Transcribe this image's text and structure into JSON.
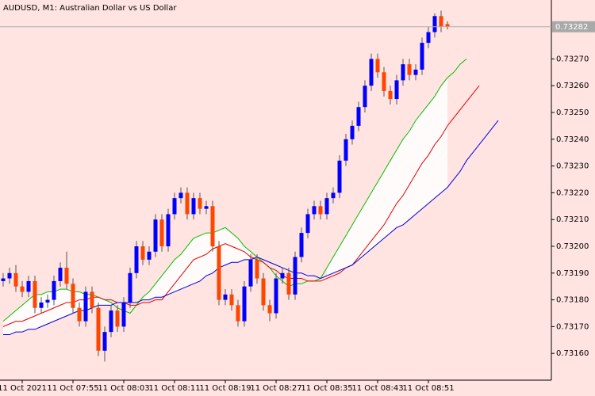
{
  "chart_data": {
    "type": "candlestick",
    "title": "AUDUSD, M1:  Australian Dollar vs US Dollar",
    "categories": [
      null,
      null,
      null,
      "11 Oct 2021",
      null,
      null,
      null,
      null,
      null,
      null,
      null,
      "11 Oct 07:55",
      null,
      null,
      null,
      null,
      null,
      null,
      null,
      "11 Oct 08:03",
      null,
      null,
      null,
      null,
      null,
      null,
      null,
      "11 Oct 08:11",
      null,
      null,
      null,
      null,
      null,
      null,
      null,
      "11 Oct 08:19",
      null,
      null,
      null,
      null,
      null,
      null,
      null,
      "11 Oct 08:27",
      null,
      null,
      null,
      null,
      null,
      null,
      null,
      "11 Oct 08:35",
      null,
      null,
      null,
      null,
      null,
      null,
      null,
      "11 Oct 08:43",
      null,
      null,
      null,
      null,
      null,
      null,
      null,
      "11 Oct 08:51",
      null,
      null,
      null,
      null,
      null,
      null,
      null,
      null,
      null,
      null,
      null
    ],
    "open": [
      0.73187,
      0.73188,
      0.7319,
      0.73185,
      0.73183,
      0.73187,
      0.73177,
      0.73179,
      0.7318,
      0.73187,
      0.73192,
      0.73186,
      0.73177,
      0.73172,
      0.73183,
      0.73177,
      0.73161,
      0.73168,
      0.73176,
      0.7317,
      0.73179,
      0.7319,
      0.732,
      0.73195,
      0.73198,
      0.7321,
      0.732,
      0.73212,
      0.73218,
      0.7322,
      0.73212,
      0.73218,
      0.73214,
      0.73215,
      0.732,
      0.7318,
      0.73182,
      0.73178,
      0.73172,
      0.73185,
      0.73195,
      0.73188,
      0.73178,
      0.73175,
      0.73188,
      0.7319,
      0.73182,
      0.73196,
      0.73205,
      0.73212,
      0.73215,
      0.73212,
      0.73218,
      0.7322,
      0.73232,
      0.7324,
      0.73245,
      0.73252,
      0.7326,
      0.7327,
      0.73265,
      0.73258,
      0.73255,
      0.73262,
      0.73268,
      0.73264,
      0.73266,
      0.73276,
      0.7328,
      0.73286,
      0.73283,
      null,
      null,
      null,
      null,
      null,
      null,
      null,
      null
    ],
    "high": [
      0.7319,
      0.73192,
      0.73193,
      0.73187,
      0.73189,
      0.73189,
      0.73181,
      0.73182,
      0.73189,
      0.73194,
      0.73198,
      0.73188,
      0.73179,
      0.73185,
      0.73185,
      0.73179,
      0.7317,
      0.73178,
      0.73178,
      0.73181,
      0.73192,
      0.73202,
      0.73202,
      0.732,
      0.73212,
      0.73212,
      0.73214,
      0.7322,
      0.73222,
      0.73222,
      0.7322,
      0.7322,
      0.73217,
      0.73217,
      0.73202,
      0.73184,
      0.73184,
      0.7318,
      0.73187,
      0.73197,
      0.73197,
      0.7319,
      0.7318,
      0.7319,
      0.73192,
      0.73192,
      0.73198,
      0.73207,
      0.73214,
      0.73217,
      0.73217,
      0.7322,
      0.73222,
      0.73234,
      0.73242,
      0.73247,
      0.73254,
      0.73262,
      0.73272,
      0.73272,
      0.73267,
      0.7326,
      0.73264,
      0.7327,
      0.7327,
      0.73268,
      0.73278,
      0.73282,
      0.73287,
      0.73288,
      0.73284,
      null,
      null,
      null,
      null,
      null,
      null,
      null,
      null
    ],
    "low": [
      0.73185,
      0.73186,
      0.73183,
      0.73181,
      0.73181,
      0.73175,
      0.73175,
      0.73177,
      0.73178,
      0.73185,
      0.73184,
      0.73175,
      0.7317,
      0.7317,
      0.73175,
      0.73159,
      0.73157,
      0.73166,
      0.73168,
      0.73168,
      0.73177,
      0.73188,
      0.73193,
      0.73193,
      0.73196,
      0.73198,
      0.73198,
      0.7321,
      0.73216,
      0.7321,
      0.7321,
      0.73212,
      0.73212,
      0.73198,
      0.73178,
      0.73178,
      0.73176,
      0.7317,
      0.7317,
      0.73183,
      0.73186,
      0.73176,
      0.73172,
      0.73173,
      0.73186,
      0.7318,
      0.7318,
      0.73194,
      0.73203,
      0.7321,
      0.7321,
      0.7321,
      0.73216,
      0.73218,
      0.7323,
      0.73238,
      0.73243,
      0.7325,
      0.73258,
      0.73263,
      0.73256,
      0.73253,
      0.73253,
      0.7326,
      0.73262,
      0.73262,
      0.73264,
      0.73274,
      0.73278,
      0.7328,
      0.73281,
      null,
      null,
      null,
      null,
      null,
      null,
      null,
      null
    ],
    "close": [
      0.73188,
      0.7319,
      0.73185,
      0.73183,
      0.73187,
      0.73177,
      0.73179,
      0.7318,
      0.73187,
      0.73192,
      0.73186,
      0.73177,
      0.73172,
      0.73183,
      0.73177,
      0.73161,
      0.73168,
      0.73176,
      0.7317,
      0.73179,
      0.7319,
      0.732,
      0.73195,
      0.73198,
      0.7321,
      0.732,
      0.73212,
      0.73218,
      0.7322,
      0.73212,
      0.73218,
      0.73214,
      0.73215,
      0.732,
      0.7318,
      0.73182,
      0.73178,
      0.73172,
      0.73185,
      0.73195,
      0.73188,
      0.73178,
      0.73175,
      0.73188,
      0.7319,
      0.73182,
      0.73196,
      0.73205,
      0.73212,
      0.73215,
      0.73212,
      0.73218,
      0.7322,
      0.73232,
      0.7324,
      0.73245,
      0.73252,
      0.7326,
      0.7327,
      0.73265,
      0.73258,
      0.73255,
      0.73262,
      0.73268,
      0.73264,
      0.73266,
      0.73276,
      0.7328,
      0.73286,
      0.73282,
      0.73282,
      null,
      null,
      null,
      null,
      null,
      null,
      null,
      null
    ],
    "up_color": "#0000ff",
    "down_color": "#ff4500",
    "series": [
      {
        "color": "#00c000",
        "values": [
          0.73172,
          0.73174,
          0.73176,
          0.73178,
          0.7318,
          0.73182,
          0.73182,
          0.73183,
          0.73183,
          0.73184,
          0.73184,
          0.73183,
          0.73183,
          0.73182,
          0.73182,
          0.73181,
          0.7318,
          0.73179,
          0.73177,
          0.73176,
          0.73175,
          0.73178,
          0.73181,
          0.73183,
          0.73186,
          0.73189,
          0.73192,
          0.73195,
          0.73197,
          0.732,
          0.73203,
          0.73204,
          0.73205,
          0.73205,
          0.73206,
          0.73207,
          0.73205,
          0.73203,
          0.732,
          0.73198,
          0.73196,
          0.73194,
          0.73192,
          0.73189,
          0.73187,
          0.73185,
          0.73186,
          0.73186,
          0.73187,
          0.73187,
          0.73188,
          0.73192,
          0.73196,
          0.732,
          0.73204,
          0.73208,
          0.73212,
          0.73216,
          0.7322,
          0.73224,
          0.73228,
          0.73232,
          0.73236,
          0.7324,
          0.73243,
          0.73247,
          0.7325,
          0.73253,
          0.73256,
          0.7326,
          0.73263,
          0.73265,
          0.73268,
          0.7327,
          null,
          null,
          null,
          null,
          null
        ]
      },
      {
        "color": "#e00000",
        "values": [
          0.7317,
          0.73171,
          0.73172,
          0.73172,
          0.73173,
          0.73174,
          0.73175,
          0.73176,
          0.73177,
          0.73178,
          0.73179,
          0.73179,
          0.7318,
          0.7318,
          0.73181,
          0.73181,
          0.7318,
          0.7318,
          0.73179,
          0.73179,
          0.73178,
          0.73178,
          0.73179,
          0.73179,
          0.7318,
          0.7318,
          0.73183,
          0.73186,
          0.73189,
          0.73192,
          0.73195,
          0.73196,
          0.73197,
          0.73199,
          0.732,
          0.73201,
          0.732,
          0.73199,
          0.73198,
          0.73196,
          0.73195,
          0.73194,
          0.73192,
          0.73191,
          0.73189,
          0.73188,
          0.73188,
          0.73188,
          0.73187,
          0.73187,
          0.73187,
          0.73188,
          0.73189,
          0.7319,
          0.73192,
          0.73193,
          0.73196,
          0.73199,
          0.73202,
          0.73205,
          0.73208,
          0.73212,
          0.73216,
          0.73219,
          0.73223,
          0.73227,
          0.73231,
          0.73234,
          0.73238,
          0.73241,
          0.73245,
          0.73248,
          0.73251,
          0.73254,
          0.73257,
          0.7326,
          null,
          null,
          null
        ]
      },
      {
        "color": "#0000e0",
        "values": [
          0.73167,
          0.73167,
          0.73168,
          0.73168,
          0.73169,
          0.73169,
          0.7317,
          0.73171,
          0.73172,
          0.73173,
          0.73174,
          0.73175,
          0.73176,
          0.73176,
          0.73177,
          0.73178,
          0.73178,
          0.73178,
          0.73179,
          0.73179,
          0.73179,
          0.73179,
          0.7318,
          0.7318,
          0.73181,
          0.73181,
          0.73182,
          0.73183,
          0.73184,
          0.73185,
          0.73186,
          0.73187,
          0.73189,
          0.7319,
          0.73192,
          0.73193,
          0.73194,
          0.73194,
          0.73195,
          0.73195,
          0.73196,
          0.73195,
          0.73194,
          0.73193,
          0.73192,
          0.73191,
          0.7319,
          0.7319,
          0.73189,
          0.73189,
          0.73188,
          0.73189,
          0.7319,
          0.73191,
          0.73192,
          0.73193,
          0.73195,
          0.73197,
          0.73199,
          0.73201,
          0.73203,
          0.73205,
          0.73207,
          0.73208,
          0.7321,
          0.73212,
          0.73214,
          0.73216,
          0.73218,
          0.7322,
          0.73222,
          0.73225,
          0.73228,
          0.73232,
          0.73235,
          0.73238,
          0.73241,
          0.73244,
          0.73247
        ]
      }
    ],
    "current_price": 0.73282,
    "ylim": [
      0.7315,
      0.73292
    ],
    "yticks": [
      {
        "value": 0.7316,
        "label": "0.73160"
      },
      {
        "value": 0.7317,
        "label": "0.73170"
      },
      {
        "value": 0.7318,
        "label": "0.73180"
      },
      {
        "value": 0.7319,
        "label": "0.73190"
      },
      {
        "value": 0.732,
        "label": "0.73200"
      },
      {
        "value": 0.7321,
        "label": "0.73210"
      },
      {
        "value": 0.7322,
        "label": "0.73220"
      },
      {
        "value": 0.7323,
        "label": "0.73230"
      },
      {
        "value": 0.7324,
        "label": "0.73240"
      },
      {
        "value": 0.7325,
        "label": "0.73250"
      },
      {
        "value": 0.7326,
        "label": "0.73260"
      },
      {
        "value": 0.7327,
        "label": "0.73270"
      }
    ],
    "grid": false
  }
}
